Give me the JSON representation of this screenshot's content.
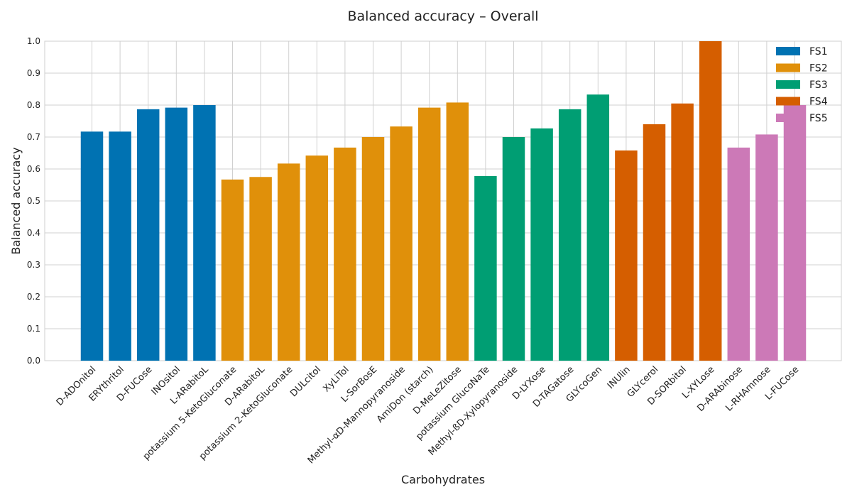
{
  "chart_data": {
    "type": "bar",
    "title": "Balanced accuracy – Overall",
    "xlabel": "Carbohydrates",
    "ylabel": "Balanced accuracy",
    "ylim": [
      0,
      1.0
    ],
    "yticks": [
      "0.0",
      "0.1",
      "0.2",
      "0.3",
      "0.4",
      "0.5",
      "0.6",
      "0.7",
      "0.8",
      "0.9",
      "1.0"
    ],
    "grid": true,
    "legend_position": "top-right",
    "series": [
      {
        "name": "FS1",
        "color": "#0072b2",
        "categories": [
          "D-ADOnitol",
          "ERYthritol",
          "D-FUCose",
          "INOsitol",
          "L-ARabitoL"
        ],
        "values": [
          0.717,
          0.717,
          0.787,
          0.792,
          0.8
        ]
      },
      {
        "name": "FS2",
        "color": "#e0900a",
        "categories": [
          "potassium 5-KetoGluconate",
          "D-ARabitoL",
          "potassium 2-KetoGluconate",
          "DULcitol",
          "XyLiTol",
          "L-SorBosE",
          "Methyl-αD-Mannopyranoside",
          "AmiDon (starch)",
          "D-MeLeZitose"
        ],
        "values": [
          0.567,
          0.575,
          0.617,
          0.642,
          0.667,
          0.7,
          0.733,
          0.792,
          0.808
        ]
      },
      {
        "name": "FS3",
        "color": "#009e73",
        "categories": [
          "potassium GlucoNaTe",
          "Methyl-ßD-Xylopyranoside",
          "D-LYXose",
          "D-TAGatose",
          "GLYcoGen"
        ],
        "values": [
          0.578,
          0.7,
          0.727,
          0.787,
          0.833
        ]
      },
      {
        "name": "FS4",
        "color": "#d55e00",
        "categories": [
          "INUlin",
          "GLYcerol",
          "D-SORbitol",
          "L-XYLose"
        ],
        "values": [
          0.658,
          0.74,
          0.805,
          1.0
        ]
      },
      {
        "name": "FS5",
        "color": "#cc79b7",
        "categories": [
          "D-ARAbinose",
          "L-RHAmnose",
          "L-FUCose"
        ],
        "values": [
          0.667,
          0.708,
          0.8
        ]
      }
    ]
  }
}
